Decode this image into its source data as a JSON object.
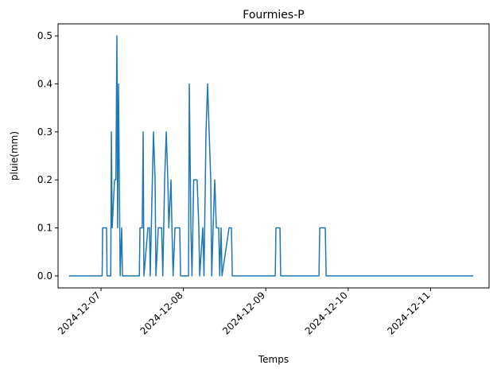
{
  "chart_data": {
    "type": "line",
    "title": "Fourmies-P",
    "x_label": "Temps",
    "y_label": "pluie(mm)",
    "x": [
      "2024-12-06T14:40",
      "2024-12-07T00:20",
      "2024-12-07T00:28",
      "2024-12-07T01:37",
      "2024-12-07T01:45",
      "2024-12-07T02:50",
      "2024-12-07T03:01",
      "2024-12-07T03:15",
      "2024-12-07T03:56",
      "2024-12-07T04:20",
      "2024-12-07T04:38",
      "2024-12-07T04:50",
      "2024-12-07T05:06",
      "2024-12-07T05:20",
      "2024-12-07T05:35",
      "2024-12-07T06:01",
      "2024-12-07T06:15",
      "2024-12-07T11:10",
      "2024-12-07T11:21",
      "2024-12-07T12:00",
      "2024-12-07T12:17",
      "2024-12-07T12:30",
      "2024-12-07T13:40",
      "2024-12-07T14:08",
      "2024-12-07T14:20",
      "2024-12-07T15:17",
      "2024-12-07T15:45",
      "2024-12-07T16:00",
      "2024-12-07T16:41",
      "2024-12-07T17:40",
      "2024-12-07T18:00",
      "2024-12-07T18:32",
      "2024-12-07T19:00",
      "2024-12-07T19:28",
      "2024-12-07T19:45",
      "2024-12-07T20:23",
      "2024-12-07T20:40",
      "2024-12-07T21:00",
      "2024-12-07T21:33",
      "2024-12-07T22:56",
      "2024-12-07T23:10",
      "2024-12-08T01:30",
      "2024-12-08T01:43",
      "2024-12-08T02:11",
      "2024-12-08T02:30",
      "2024-12-08T03:00",
      "2024-12-08T04:00",
      "2024-12-08T04:30",
      "2024-12-08T04:45",
      "2024-12-08T05:39",
      "2024-12-08T06:00",
      "2024-12-08T06:35",
      "2024-12-08T07:03",
      "2024-12-08T07:30",
      "2024-12-08T07:58",
      "2024-12-08T08:15",
      "2024-12-08T08:40",
      "2024-12-08T09:08",
      "2024-12-08T09:36",
      "2024-12-08T10:17",
      "2024-12-08T10:35",
      "2024-12-08T10:59",
      "2024-12-08T11:15",
      "2024-12-08T13:18",
      "2024-12-08T14:00",
      "2024-12-08T14:15",
      "2024-12-09T02:45",
      "2024-12-09T02:58",
      "2024-12-09T04:08",
      "2024-12-09T04:20",
      "2024-12-09T15:30",
      "2024-12-09T15:43",
      "2024-12-09T17:20",
      "2024-12-09T17:35",
      "2024-12-11T12:25"
    ],
    "series": [
      {
        "name": "pluie",
        "color": "#1f77b4",
        "values": [
          0,
          0,
          0.1,
          0.1,
          0,
          0,
          0.3,
          0.1,
          0.2,
          0.2,
          0.5,
          0.1,
          0.4,
          0.2,
          0,
          0.1,
          0,
          0,
          0.1,
          0.1,
          0.3,
          0,
          0.1,
          0.1,
          0,
          0.3,
          0.2,
          0,
          0.1,
          0.1,
          0,
          0.2,
          0.3,
          0.2,
          0.1,
          0.2,
          0.1,
          0,
          0.1,
          0.1,
          0,
          0,
          0.4,
          0.1,
          0,
          0.2,
          0.2,
          0.1,
          0,
          0.1,
          0,
          0.3,
          0.4,
          0.3,
          0.2,
          0,
          0.1,
          0.2,
          0.1,
          0.1,
          0,
          0.1,
          0,
          0.1,
          0.1,
          0,
          0,
          0.1,
          0.1,
          0,
          0,
          0.1,
          0.1,
          0,
          0
        ]
      }
    ],
    "xlim": [
      "2024-12-06T11:29",
      "2024-12-11T17:03"
    ],
    "xticks": [
      "2024-12-07",
      "2024-12-08",
      "2024-12-09",
      "2024-12-10",
      "2024-12-11"
    ],
    "ylim": [
      -0.025,
      0.525
    ],
    "yticks": [
      {
        "value": 0,
        "label": "0.0"
      },
      0.1,
      0.2,
      0.3,
      0.4,
      0.5
    ]
  }
}
